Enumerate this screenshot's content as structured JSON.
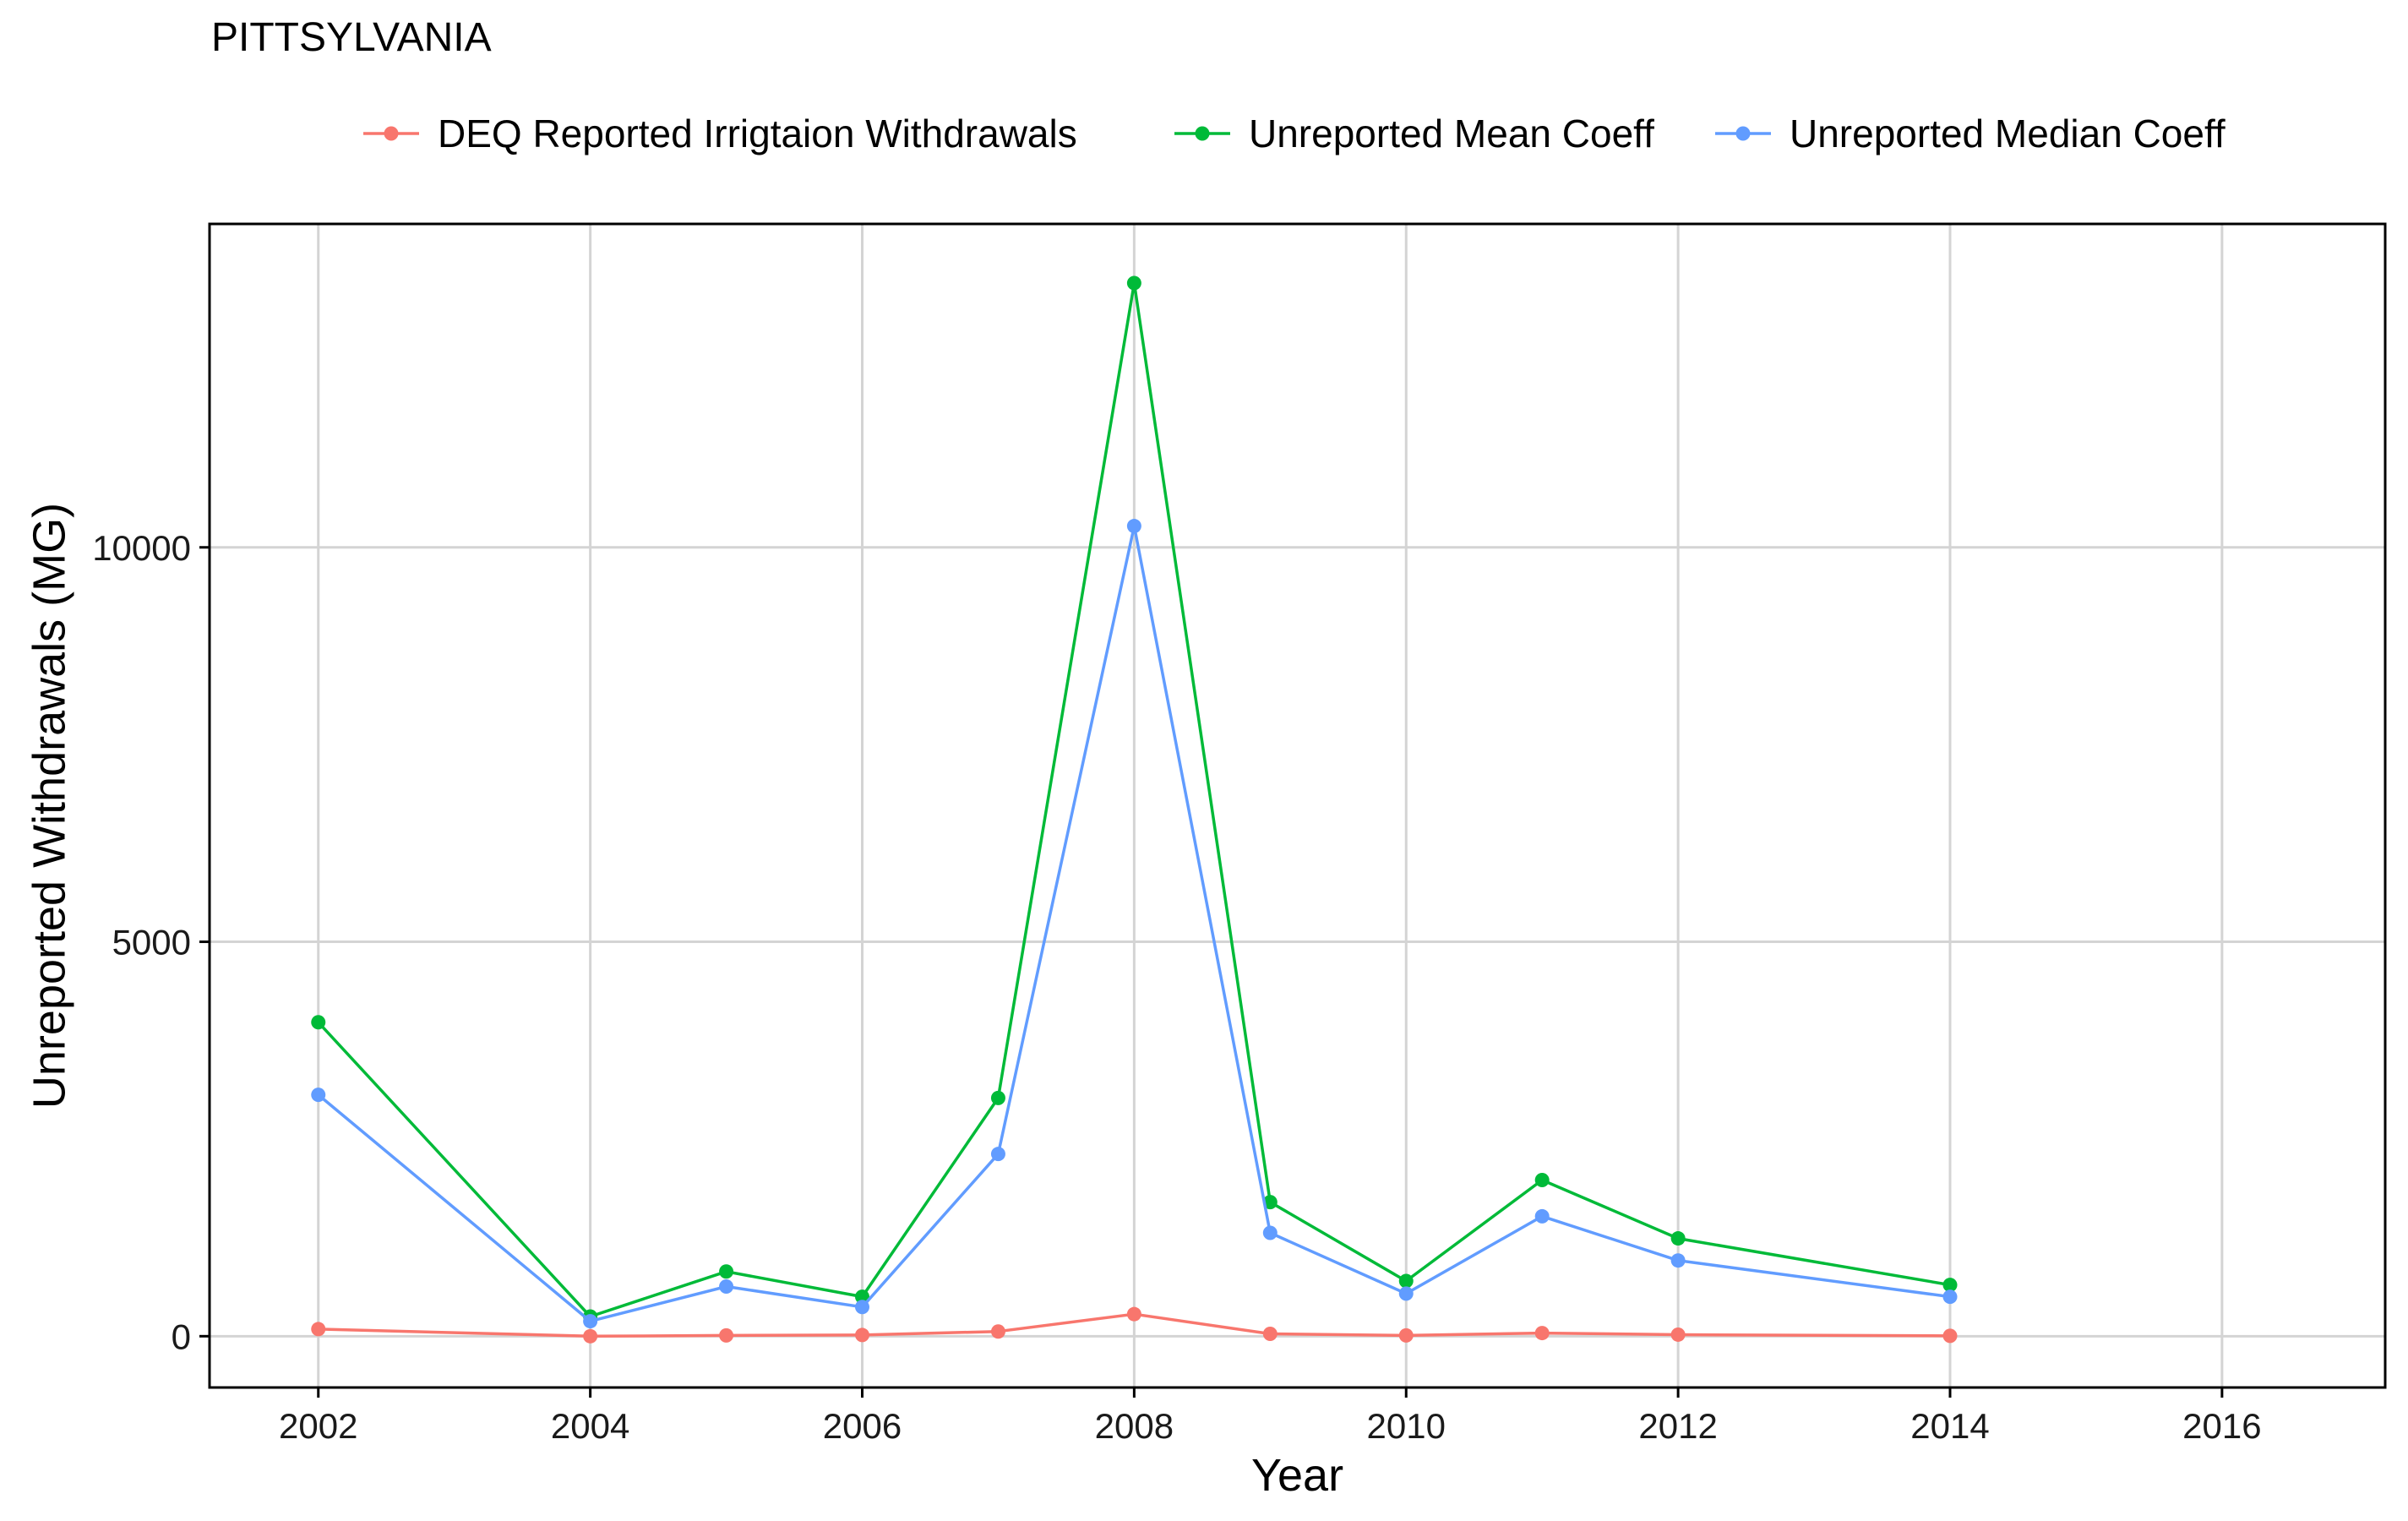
{
  "chart_data": {
    "type": "line",
    "title": "PITTSYLVANIA",
    "xlabel": "Year",
    "ylabel": "Unreported Withdrawals (MG)",
    "xlim": [
      2001.2,
      2017.2
    ],
    "ylim": [
      -650,
      14100
    ],
    "x_ticks": [
      2002,
      2004,
      2006,
      2008,
      2010,
      2012,
      2014,
      2016
    ],
    "y_ticks": [
      0,
      5000,
      10000
    ],
    "grid": true,
    "legend_position": "top",
    "series": [
      {
        "name": "DEQ Reported Irrigtaion Withdrawals",
        "color": "#F8766D",
        "x": [
          2002,
          2004,
          2005,
          2006,
          2007,
          2008,
          2009,
          2010,
          2011,
          2012,
          2014
        ],
        "y": [
          90,
          0,
          10,
          15,
          60,
          280,
          30,
          10,
          40,
          20,
          5
        ]
      },
      {
        "name": "Unreported Mean Coeff",
        "color": "#00BA38",
        "x": [
          2002,
          2004,
          2005,
          2006,
          2007,
          2008,
          2009,
          2010,
          2011,
          2012,
          2014
        ],
        "y": [
          3980,
          250,
          820,
          500,
          3020,
          13350,
          1700,
          700,
          1980,
          1240,
          650
        ]
      },
      {
        "name": "Unreported Median Coeff",
        "color": "#619CFF",
        "x": [
          2002,
          2004,
          2005,
          2006,
          2007,
          2008,
          2009,
          2010,
          2011,
          2012,
          2014
        ],
        "y": [
          3060,
          190,
          630,
          370,
          2310,
          10270,
          1310,
          540,
          1520,
          960,
          500
        ]
      }
    ]
  }
}
